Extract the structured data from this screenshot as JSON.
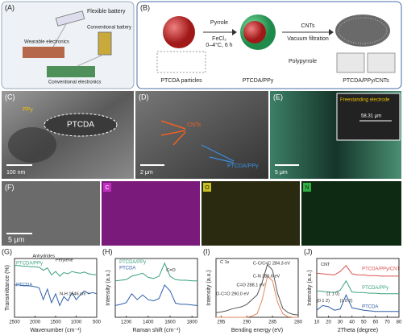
{
  "panels": {
    "a": {
      "label": "(A)",
      "flexible": "Flexible battery",
      "wearable": "Wearable electronics",
      "conv_battery": "Conventional battery",
      "conv_electronics": "Conventional electronics"
    },
    "b": {
      "label": "(B)",
      "pyrrole": "Pyrrole",
      "oxidant": "FeCl₃",
      "condition": "0–4°C, 6 h",
      "cnts": "CNTs",
      "filtration": "Vacuum filtration",
      "polypyrrole": "Polypyrrole",
      "particles": "PTCDA particles",
      "composite": "PTCDA/PPy",
      "final": "PTCDA/PPy/CNTs"
    },
    "c": {
      "label": "(C)",
      "ppy": "PPy",
      "ptcda": "PTCDA",
      "scale": "100 nm"
    },
    "d": {
      "label": "(D)",
      "cnts": "CNTs",
      "ppy": "PTCDA/PPy",
      "scale": "2 μm"
    },
    "e": {
      "label": "(E)",
      "inset": "Freestanding electrode",
      "thickness": "58.31 μm",
      "scale": "5 μm"
    },
    "f": {
      "label": "(F)",
      "scale": "5 μm",
      "c": "C",
      "o": "O",
      "n": "N"
    }
  },
  "chart_data": [
    {
      "type": "line",
      "panel_label": "(G)",
      "x_label": "Wavenumber (cm⁻¹)",
      "y_label": "Transmittance (%)",
      "x": [
        2500,
        2400,
        2300,
        2200,
        2100,
        2000,
        1900,
        1800,
        1700,
        1600,
        1500,
        1400,
        1300,
        1200,
        1100,
        1000,
        900,
        800,
        700,
        600,
        500
      ],
      "xlim": [
        2500,
        500
      ],
      "xticks": [
        2500,
        2000,
        1500,
        1000,
        500
      ],
      "ylim": [
        0,
        100
      ],
      "series": [
        {
          "name": "PTCDA/PPy",
          "color": "#3aa37a",
          "values": [
            88,
            88,
            87,
            87,
            86,
            86,
            85,
            80,
            84,
            72,
            78,
            70,
            76,
            74,
            78,
            76,
            75,
            77,
            74,
            73,
            72
          ]
        },
        {
          "name": "PTCDA",
          "color": "#2e5fa8",
          "values": [
            55,
            55,
            54,
            54,
            53,
            52,
            50,
            30,
            48,
            25,
            40,
            20,
            35,
            28,
            42,
            30,
            38,
            45,
            40,
            42,
            40
          ]
        }
      ],
      "annotations": [
        "Anhydrides",
        "Perylene",
        "N-H 1546 cm⁻¹"
      ]
    },
    {
      "type": "line",
      "panel_label": "(H)",
      "x_label": "Raman shift (cm⁻¹)",
      "y_label": "Intensity (a.u.)",
      "x": [
        1100,
        1150,
        1200,
        1250,
        1300,
        1350,
        1400,
        1450,
        1500,
        1550,
        1600,
        1650,
        1700,
        1750,
        1800,
        1850
      ],
      "xlim": [
        1100,
        1850
      ],
      "xticks": [
        1200,
        1400,
        1600,
        1800
      ],
      "ylim": [
        0,
        100
      ],
      "series": [
        {
          "name": "PTCDA/PPy",
          "color": "#3aa37a",
          "values": [
            62,
            63,
            64,
            70,
            72,
            75,
            68,
            66,
            70,
            92,
            70,
            64,
            63,
            63,
            62,
            62
          ]
        },
        {
          "name": "PTCDA",
          "color": "#2e5fa8",
          "values": [
            20,
            22,
            25,
            40,
            30,
            38,
            30,
            28,
            32,
            55,
            45,
            24,
            22,
            22,
            21,
            20
          ]
        }
      ],
      "annotations": [
        "C=O"
      ]
    },
    {
      "type": "line",
      "panel_label": "(I)",
      "x_label": "Bending energy (eV)",
      "y_label": "Intensity (a.u.)",
      "x": [
        296,
        295,
        294,
        293,
        292,
        291,
        290,
        289,
        288,
        287,
        286,
        285,
        284,
        283,
        282,
        281,
        280
      ],
      "xlim": [
        296,
        280
      ],
      "xticks": [
        295,
        290,
        285,
        280
      ],
      "ylim": [
        0,
        100
      ],
      "series": [
        {
          "color": "#555555",
          "values": [
            8,
            9,
            11,
            14,
            16,
            18,
            22,
            30,
            38,
            60,
            90,
            80,
            40,
            15,
            8,
            5,
            4
          ]
        },
        {
          "color": "#e08a5a",
          "values": [
            0,
            0,
            0,
            0,
            0,
            0,
            0,
            2,
            6,
            30,
            70,
            62,
            25,
            6,
            1,
            0,
            0
          ]
        }
      ],
      "annotations": [
        "C 1s",
        "C-C/C=C 284.3 eV",
        "C-N 285.6 eV",
        "C=O 288.1 eV",
        "O-C=O 290.0 eV"
      ]
    },
    {
      "type": "line",
      "panel_label": "(J)",
      "x_label": "2Theta (degree)",
      "y_label": "Intensity (a.u.)",
      "x": [
        10,
        15,
        20,
        25,
        30,
        35,
        40,
        45,
        50,
        55,
        60,
        65,
        70,
        75,
        80
      ],
      "xlim": [
        10,
        80
      ],
      "xticks": [
        10,
        20,
        30,
        40,
        50,
        60,
        70,
        80
      ],
      "ylim": [
        0,
        100
      ],
      "series": [
        {
          "name": "PTCDA/PPy/CNT",
          "color": "#d9534f",
          "values": [
            75,
            74,
            73,
            72,
            78,
            88,
            74,
            72,
            72,
            71,
            71,
            70,
            70,
            70,
            70
          ]
        },
        {
          "name": "PTCDA/PPy",
          "color": "#3aa37a",
          "values": [
            45,
            44,
            43,
            42,
            46,
            62,
            43,
            42,
            42,
            41,
            41,
            40,
            40,
            40,
            40
          ]
        },
        {
          "name": "PTCDA",
          "color": "#2e5fa8",
          "values": [
            12,
            20,
            18,
            12,
            14,
            38,
            16,
            14,
            12,
            11,
            10,
            10,
            10,
            10,
            10
          ]
        }
      ],
      "annotations": [
        "CNT",
        "(0 1 2)",
        "(1 1 0)",
        "(1 0 2)"
      ]
    }
  ]
}
